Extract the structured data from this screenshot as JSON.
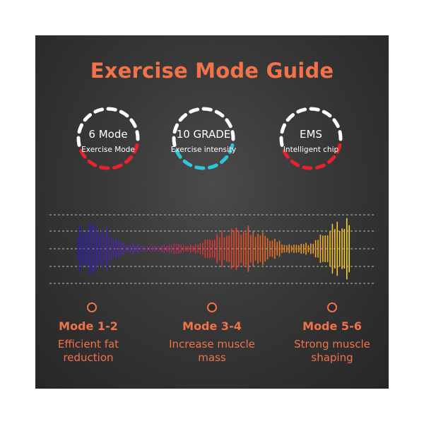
{
  "title": "Exercise Mode Guide",
  "rings": [
    {
      "main": "6 Mode",
      "sub": "Exercise Mode",
      "accent": "#e8222a",
      "base": "#ffffff"
    },
    {
      "main": "10 GRADE",
      "sub": "Exercise intensity",
      "accent": "#31c4de",
      "base": "#ffffff"
    },
    {
      "main": "EMS",
      "sub": "Intelligent chip",
      "accent": "#e8222a",
      "base": "#ffffff"
    }
  ],
  "modes": [
    {
      "label": "Mode 1-2",
      "desc_line1": "Efficient fat",
      "desc_line2": "reduction"
    },
    {
      "label": "Mode 3-4",
      "desc_line1": "Increase muscle",
      "desc_line2": "mass"
    },
    {
      "label": "Mode 5-6",
      "desc_line1": "Strong muscle",
      "desc_line2": "shaping"
    }
  ],
  "colors": {
    "accent": "#f0734a",
    "background": "#333333",
    "waveform_gradient": [
      "#2a1fb0",
      "#5a2aa8",
      "#c0303a",
      "#e84a2a",
      "#f08a20",
      "#f5d52a"
    ]
  },
  "icons": [
    "dashed-ring-icon",
    "waveform-icon",
    "timeline-dot-icon"
  ]
}
